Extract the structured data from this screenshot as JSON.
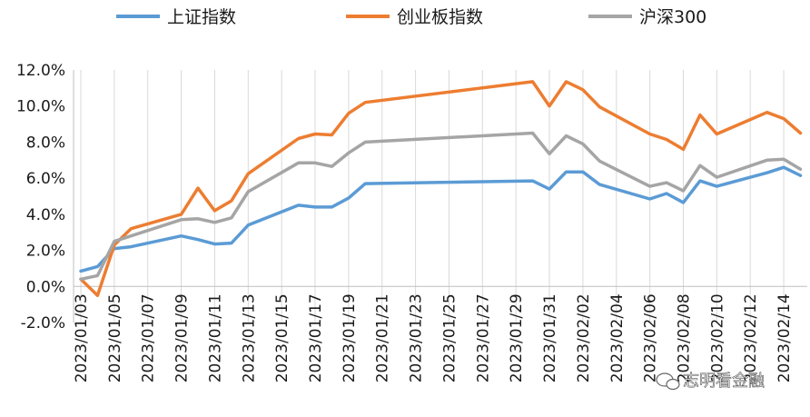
{
  "chart_data": {
    "type": "line",
    "title": "",
    "xlabel": "",
    "ylabel": "",
    "ylim": [
      -2.0,
      12.0
    ],
    "y_ticks": [
      "-2.0%",
      "0.0%",
      "2.0%",
      "4.0%",
      "6.0%",
      "8.0%",
      "10.0%",
      "12.0%"
    ],
    "x_tick_labels": [
      "2023/01/03",
      "2023/01/05",
      "2023/01/07",
      "2023/01/09",
      "2023/01/11",
      "2023/01/13",
      "2023/01/15",
      "2023/01/17",
      "2023/01/19",
      "2023/01/21",
      "2023/01/23",
      "2023/01/25",
      "2023/01/27",
      "2023/01/29",
      "2023/01/31",
      "2023/02/02",
      "2023/02/04",
      "2023/02/06",
      "2023/02/08",
      "2023/02/10",
      "2023/02/12",
      "2023/02/14"
    ],
    "legend_position": "top",
    "grid": "vertical",
    "x": [
      "2023/01/03",
      "2023/01/04",
      "2023/01/05",
      "2023/01/06",
      "2023/01/09",
      "2023/01/10",
      "2023/01/11",
      "2023/01/12",
      "2023/01/13",
      "2023/01/16",
      "2023/01/17",
      "2023/01/18",
      "2023/01/19",
      "2023/01/20",
      "2023/01/30",
      "2023/01/31",
      "2023/02/01",
      "2023/02/02",
      "2023/02/03",
      "2023/02/06",
      "2023/02/07",
      "2023/02/08",
      "2023/02/09",
      "2023/02/10",
      "2023/02/13",
      "2023/02/14",
      "2023/02/15"
    ],
    "series": [
      {
        "name": "上证指数",
        "color": "#5b9bd5",
        "values": [
          0.85,
          1.1,
          2.1,
          2.2,
          2.8,
          2.6,
          2.35,
          2.4,
          3.4,
          4.5,
          4.4,
          4.4,
          4.9,
          5.7,
          5.85,
          5.4,
          6.35,
          6.35,
          5.65,
          4.85,
          5.15,
          4.65,
          5.85,
          5.55,
          6.3,
          6.6,
          6.15
        ]
      },
      {
        "name": "创业板指数",
        "color": "#ed7d31",
        "values": [
          0.4,
          -0.5,
          2.3,
          3.2,
          4.0,
          5.45,
          4.2,
          4.75,
          6.25,
          8.2,
          8.45,
          8.4,
          9.6,
          10.2,
          11.35,
          10.0,
          11.35,
          10.9,
          9.95,
          8.45,
          8.15,
          7.6,
          9.5,
          8.45,
          9.65,
          9.3,
          8.5
        ]
      },
      {
        "name": "沪深300",
        "color": "#a5a5a5",
        "values": [
          0.4,
          0.6,
          2.5,
          2.8,
          3.7,
          3.75,
          3.55,
          3.8,
          5.25,
          6.85,
          6.85,
          6.65,
          7.4,
          8.0,
          8.5,
          7.35,
          8.35,
          7.9,
          6.95,
          5.55,
          5.75,
          5.3,
          6.7,
          6.05,
          7.0,
          7.05,
          6.5
        ]
      }
    ]
  },
  "watermark": "志明看金融"
}
